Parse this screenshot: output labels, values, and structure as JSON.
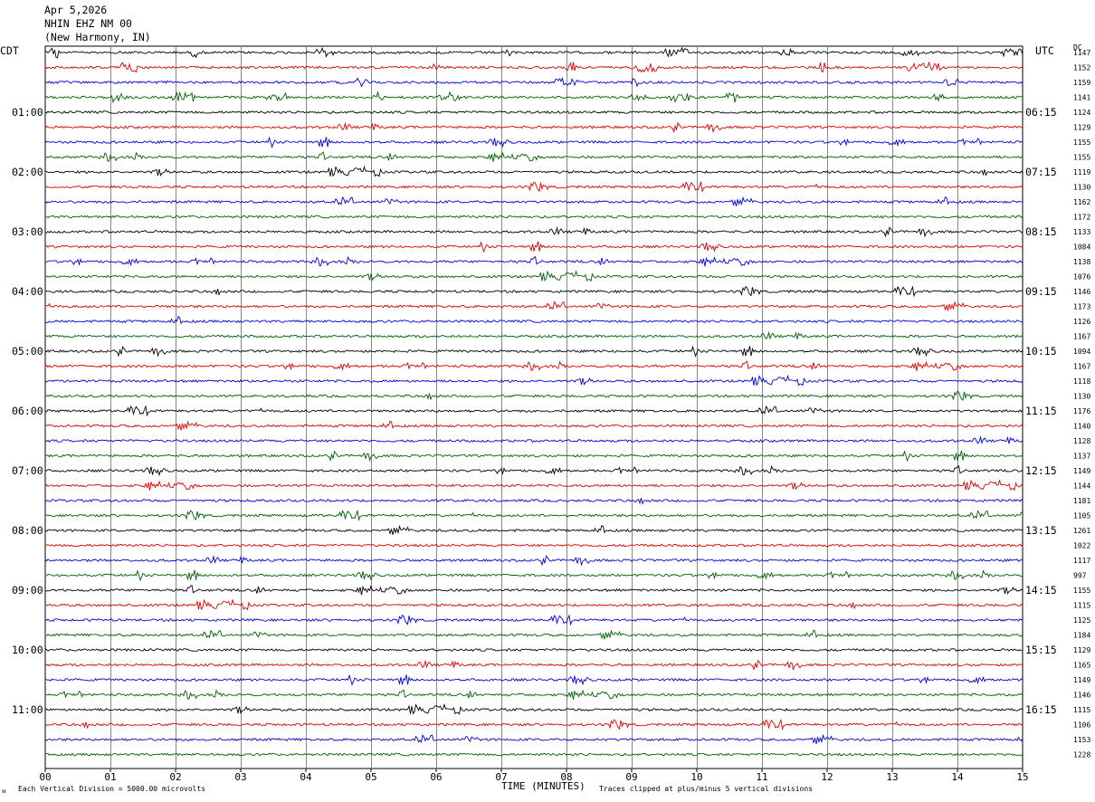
{
  "header": {
    "date": "Apr 5,2026",
    "station": "NHIN EHZ NM 00",
    "location": "(New Harmony, IN)"
  },
  "left_tz": "CDT",
  "right_tz": "UTC",
  "dc_label": "DC",
  "footer": {
    "scale_note": "Each Vertical Division = 5000.00 microvolts",
    "xlabel": "TIME (MINUTES)",
    "clip_note": "Traces clipped at plus/minus 5 vertical divisions",
    "corner_mark": "ᴍ"
  },
  "chart_data": {
    "type": "line",
    "title": "NHIN EHZ NM 00",
    "xlabel": "TIME (MINUTES)",
    "xlim": [
      0,
      15
    ],
    "x_ticks": [
      "00",
      "01",
      "02",
      "03",
      "04",
      "05",
      "06",
      "07",
      "08",
      "09",
      "10",
      "11",
      "12",
      "13",
      "14",
      "15"
    ],
    "trace_colors": [
      "#000000",
      "#e00000",
      "#0000e0",
      "#006000"
    ],
    "grid": true,
    "left_hour_labels": [
      "01:00",
      "02:00",
      "03:00",
      "04:00",
      "05:00",
      "06:00",
      "07:00",
      "08:00",
      "09:00",
      "10:00",
      "11:00"
    ],
    "right_hour_labels": [
      "06:15",
      "07:15",
      "08:15",
      "09:15",
      "10:15",
      "11:15",
      "12:15",
      "13:15",
      "14:15",
      "15:15",
      "16:15"
    ],
    "dc_offsets": [
      1147,
      1152,
      1159,
      1141,
      1124,
      1129,
      1155,
      1155,
      1119,
      1130,
      1162,
      1172,
      1133,
      1084,
      1138,
      1076,
      1146,
      1173,
      1126,
      1167,
      1094,
      1167,
      1118,
      1130,
      1176,
      1140,
      1128,
      1137,
      1149,
      1144,
      1181,
      1105,
      1261,
      1022,
      1117,
      997,
      1155,
      1115,
      1125,
      1184,
      1129,
      1165,
      1149,
      1146,
      1115,
      1106,
      1153,
      1228
    ],
    "trace_count": 48
  }
}
